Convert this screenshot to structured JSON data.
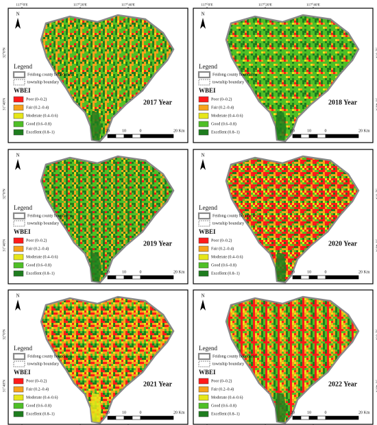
{
  "north": "N",
  "legend_title": "Legend",
  "boundaries": [
    "Feidong county boundaries",
    "township boundary"
  ],
  "index_name": "WBEI",
  "classes": [
    {
      "label": "Poor (0–0.2)",
      "color": "#ff1a1a"
    },
    {
      "label": "Fair (0.2–0.4)",
      "color": "#f7a21b"
    },
    {
      "label": "Moderate (0.4–0.6)",
      "color": "#e6e619"
    },
    {
      "label": "Good (0.6–0.8)",
      "color": "#4fbf26"
    },
    {
      "label": "Excellent (0.8–1)",
      "color": "#1e7d1e"
    }
  ],
  "scale": [
    "20",
    "10",
    "0",
    "20 Km"
  ],
  "lon_labels": [
    "117°0'E",
    "117°20'E",
    "117°40'E"
  ],
  "lat_labels": [
    "32°0'N",
    "31°40'N"
  ],
  "panels": [
    {
      "year": "2017 Year"
    },
    {
      "year": "2018 Year"
    },
    {
      "year": "2019 Year"
    },
    {
      "year": "2020 Year"
    },
    {
      "year": "2021 Year"
    },
    {
      "year": "2022 Year"
    }
  ]
}
